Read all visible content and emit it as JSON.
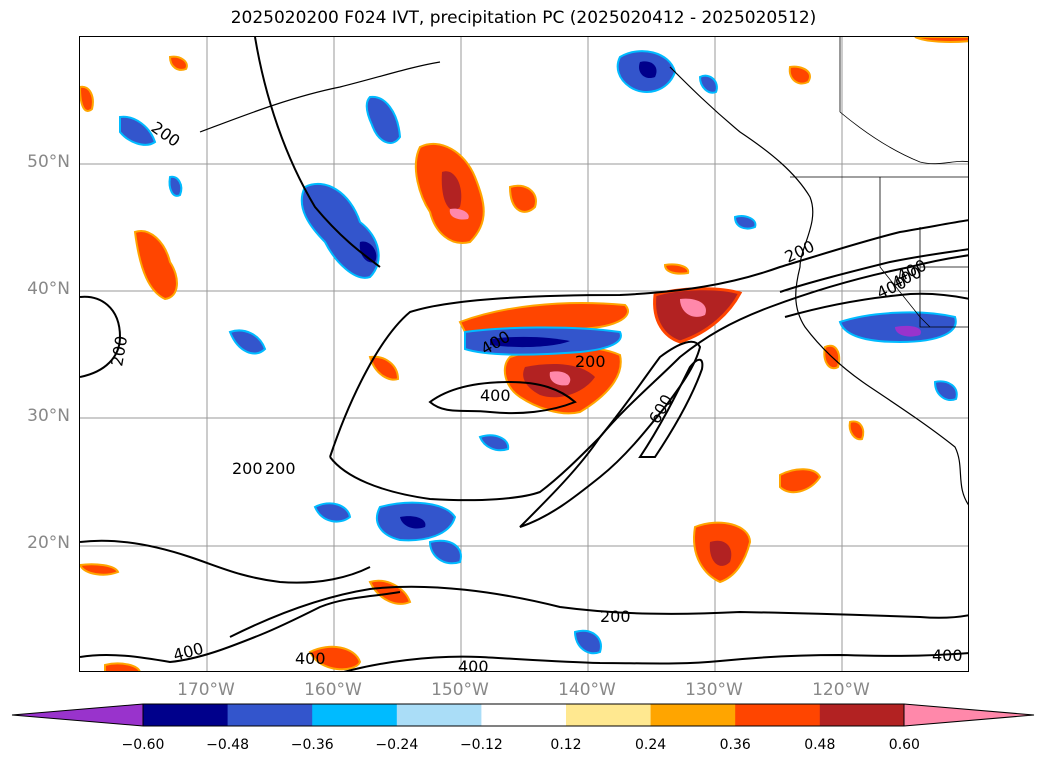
{
  "title": "2025020200 F024 IVT, precipitation PC (2025020412 - 2025020512)",
  "map": {
    "lat_labels": [
      "50°N",
      "40°N",
      "30°N",
      "20°N"
    ],
    "lon_labels": [
      "170°W",
      "160°W",
      "150°W",
      "140°W",
      "130°W",
      "120°W"
    ],
    "contour_labels": [
      "200",
      "400",
      "400",
      "200",
      "200",
      "200",
      "200",
      "600",
      "400",
      "400",
      "200",
      "400",
      "400",
      "200",
      "400",
      "400",
      "400"
    ]
  },
  "colorbar": {
    "ticks": [
      "−0.60",
      "−0.48",
      "−0.36",
      "−0.24",
      "−0.12",
      "0.12",
      "0.24",
      "0.36",
      "0.48",
      "0.60"
    ],
    "colors": [
      "#9933cc",
      "#00008b",
      "#3355cc",
      "#00bbff",
      "#aaddf7",
      "#ffffff",
      "#ffe890",
      "#ffa500",
      "#ff4500",
      "#b22222",
      "#ff88aa"
    ]
  }
}
